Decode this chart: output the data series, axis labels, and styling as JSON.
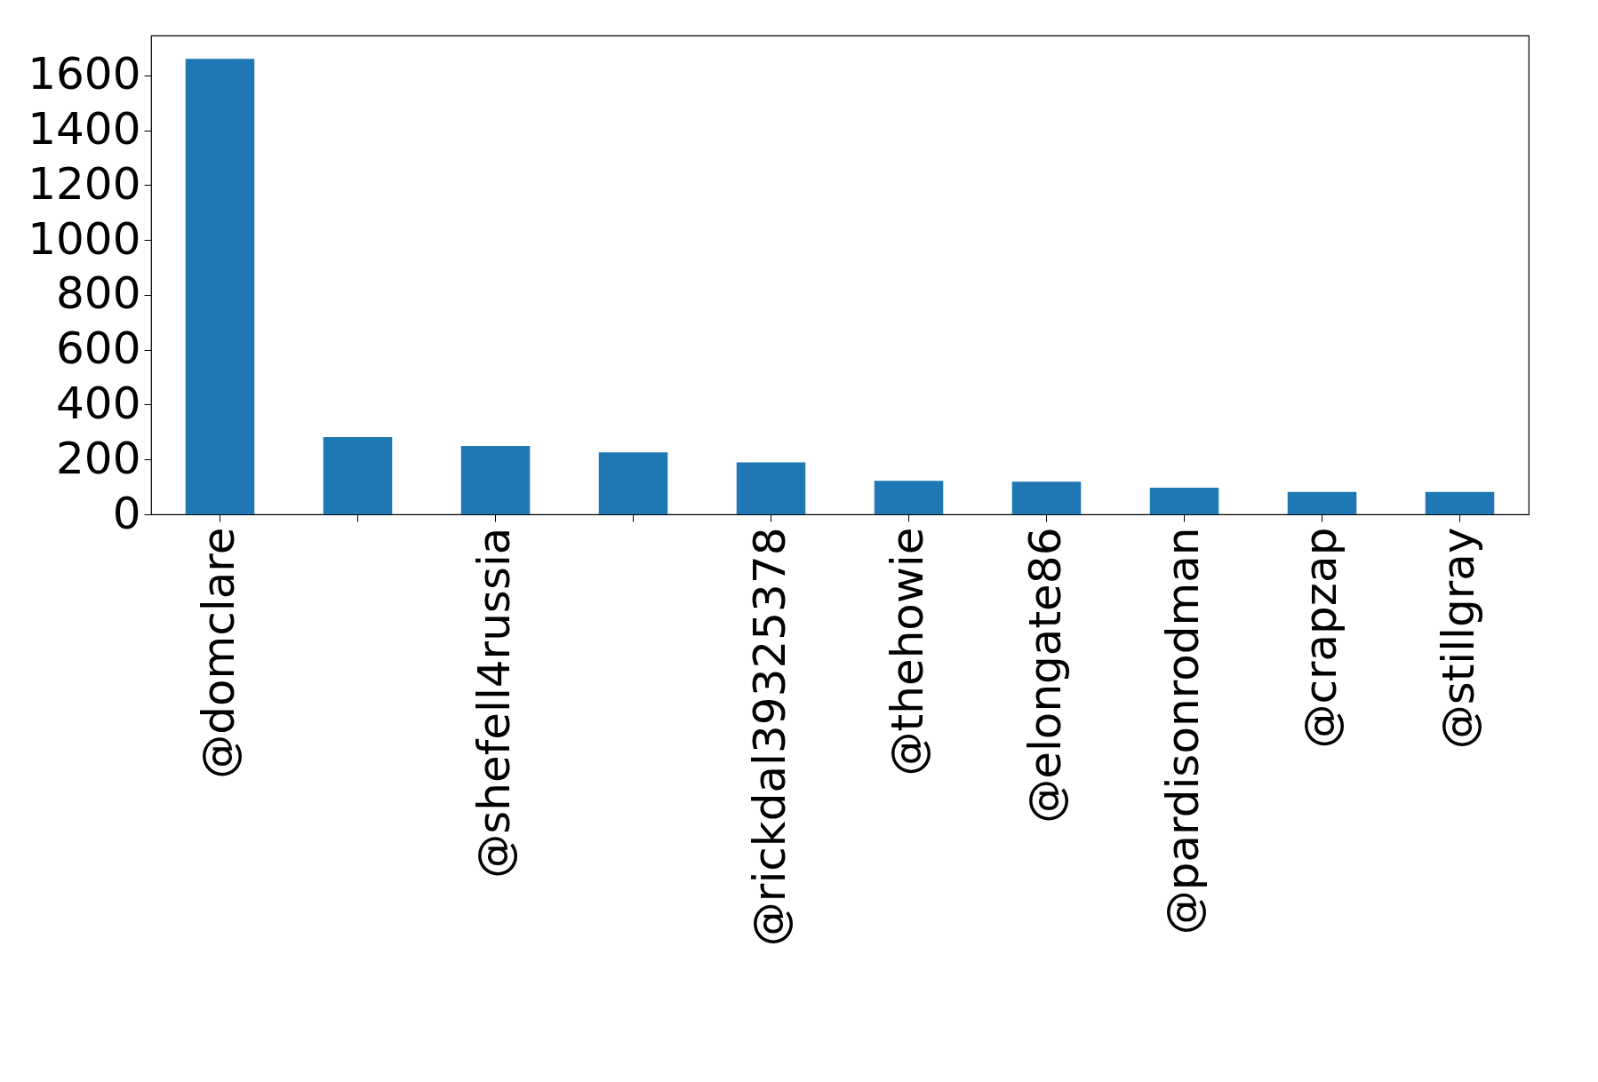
{
  "chart_data": {
    "type": "bar",
    "categories": [
      "@domclare",
      null,
      "@shefell4russia",
      null,
      "@rickdal39325378",
      "@thehowie",
      "@elongate86",
      "@pardisonrodman",
      "@crapzap",
      "@stillgray"
    ],
    "values": [
      1660,
      282,
      249,
      226,
      189,
      122,
      119,
      97,
      82,
      82
    ],
    "color": "#1f77b4",
    "ylim": [
      0,
      1745
    ],
    "yticks": [
      0,
      200,
      400,
      600,
      800,
      1000,
      1200,
      1400,
      1600
    ],
    "grid": false
  }
}
